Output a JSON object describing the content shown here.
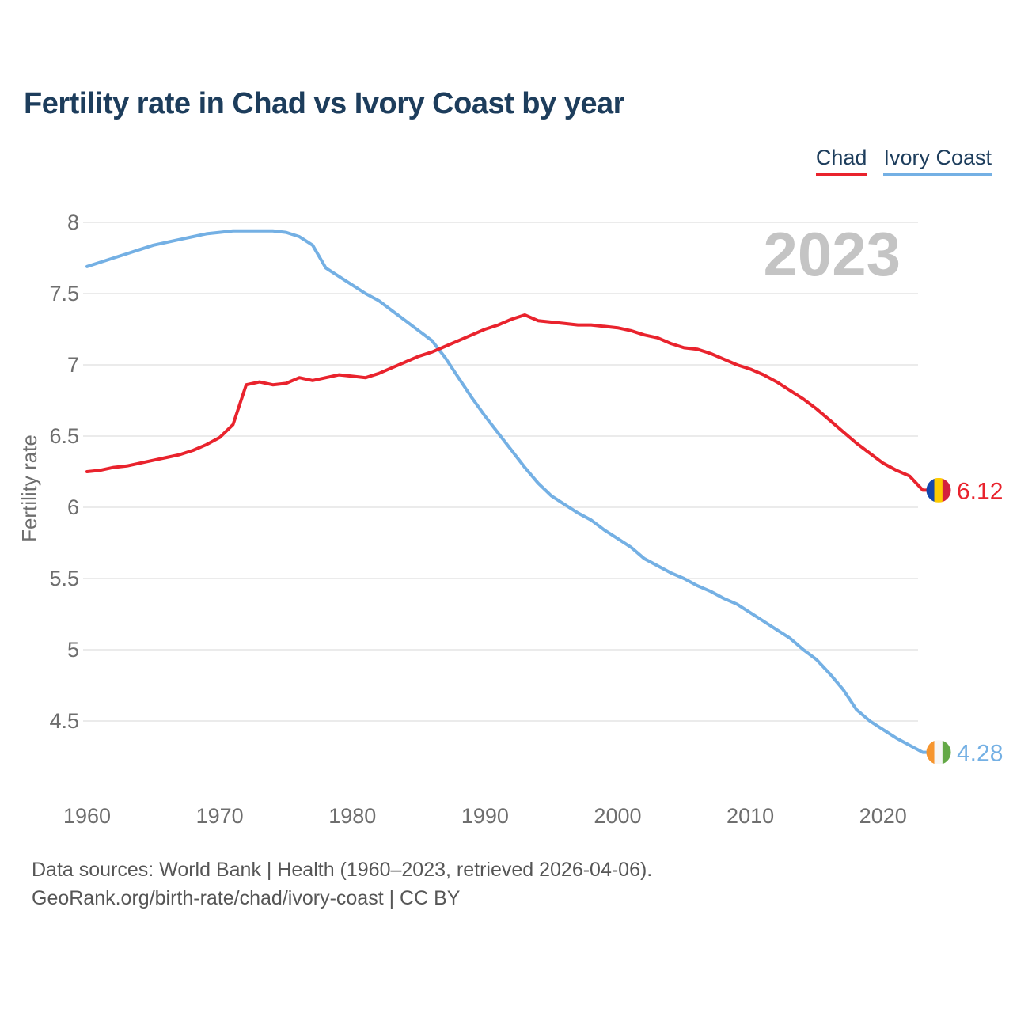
{
  "page": {
    "title": "Fertility rate in Chad vs Ivory Coast by year",
    "watermark": "2023",
    "footer_line1": "Data sources: World Bank | Health (1960–2023, retrieved 2026-04-06).",
    "footer_line2": "GeoRank.org/birth-rate/chad/ivory-coast | CC BY"
  },
  "legend": [
    {
      "label": "Chad",
      "color": "#e9232d"
    },
    {
      "label": "Ivory Coast",
      "color": "#74b0e4"
    }
  ],
  "colors": {
    "grid": "#ebebeb",
    "tick_labels": "#6e6e6e",
    "axis_title": "#6e6e6e",
    "watermark": "#c4c4c4",
    "title": "#1d3d5c",
    "footer": "#565656"
  },
  "chart_data": {
    "type": "line",
    "title": "Fertility rate in Chad vs Ivory Coast by year",
    "xlabel": "",
    "ylabel": "Fertility rate",
    "grid": true,
    "legend_position": "top-right",
    "watermark": "2023",
    "x_ticks": [
      1960,
      1970,
      1980,
      1990,
      2000,
      2010,
      2020
    ],
    "y_ticks": [
      8,
      7.5,
      7,
      6.5,
      6,
      5.5,
      5,
      4.5
    ],
    "xlim": [
      1960,
      2023
    ],
    "ylim": [
      4.2,
      8.1
    ],
    "x": [
      1960,
      1961,
      1962,
      1963,
      1964,
      1965,
      1966,
      1967,
      1968,
      1969,
      1970,
      1971,
      1972,
      1973,
      1974,
      1975,
      1976,
      1977,
      1978,
      1979,
      1980,
      1981,
      1982,
      1983,
      1984,
      1985,
      1986,
      1987,
      1988,
      1989,
      1990,
      1991,
      1992,
      1993,
      1994,
      1995,
      1996,
      1997,
      1998,
      1999,
      2000,
      2001,
      2002,
      2003,
      2004,
      2005,
      2006,
      2007,
      2008,
      2009,
      2010,
      2011,
      2012,
      2013,
      2014,
      2015,
      2016,
      2017,
      2018,
      2019,
      2020,
      2021,
      2022,
      2023
    ],
    "series": [
      {
        "name": "Chad",
        "color": "#e9232d",
        "end_label": "6.12",
        "flag_icon": "chad-flag-icon",
        "flag_colors": [
          "#1347ad",
          "#fdcb02",
          "#d4213d"
        ],
        "values": [
          6.25,
          6.26,
          6.28,
          6.29,
          6.31,
          6.33,
          6.35,
          6.37,
          6.4,
          6.44,
          6.49,
          6.58,
          6.86,
          6.88,
          6.86,
          6.87,
          6.91,
          6.89,
          6.91,
          6.93,
          6.92,
          6.91,
          6.94,
          6.98,
          7.02,
          7.06,
          7.09,
          7.13,
          7.17,
          7.21,
          7.25,
          7.28,
          7.32,
          7.35,
          7.31,
          7.3,
          7.29,
          7.28,
          7.28,
          7.27,
          7.26,
          7.24,
          7.21,
          7.19,
          7.15,
          7.12,
          7.11,
          7.08,
          7.04,
          7.0,
          6.97,
          6.93,
          6.88,
          6.82,
          6.76,
          6.69,
          6.61,
          6.53,
          6.45,
          6.38,
          6.31,
          6.26,
          6.22,
          6.12
        ]
      },
      {
        "name": "Ivory Coast",
        "color": "#74b0e4",
        "end_label": "4.28",
        "flag_icon": "ivory-coast-flag-icon",
        "flag_colors": [
          "#f6952e",
          "#f6f6f6",
          "#63a846"
        ],
        "values": [
          7.69,
          7.72,
          7.75,
          7.78,
          7.81,
          7.84,
          7.86,
          7.88,
          7.9,
          7.92,
          7.93,
          7.94,
          7.94,
          7.94,
          7.94,
          7.93,
          7.9,
          7.84,
          7.68,
          7.62,
          7.56,
          7.5,
          7.45,
          7.38,
          7.31,
          7.24,
          7.17,
          7.05,
          6.91,
          6.77,
          6.64,
          6.52,
          6.4,
          6.28,
          6.17,
          6.08,
          6.02,
          5.96,
          5.91,
          5.84,
          5.78,
          5.72,
          5.64,
          5.59,
          5.54,
          5.5,
          5.45,
          5.41,
          5.36,
          5.32,
          5.26,
          5.2,
          5.14,
          5.08,
          5.0,
          4.93,
          4.83,
          4.72,
          4.58,
          4.5,
          4.44,
          4.38,
          4.33,
          4.28
        ]
      }
    ]
  }
}
